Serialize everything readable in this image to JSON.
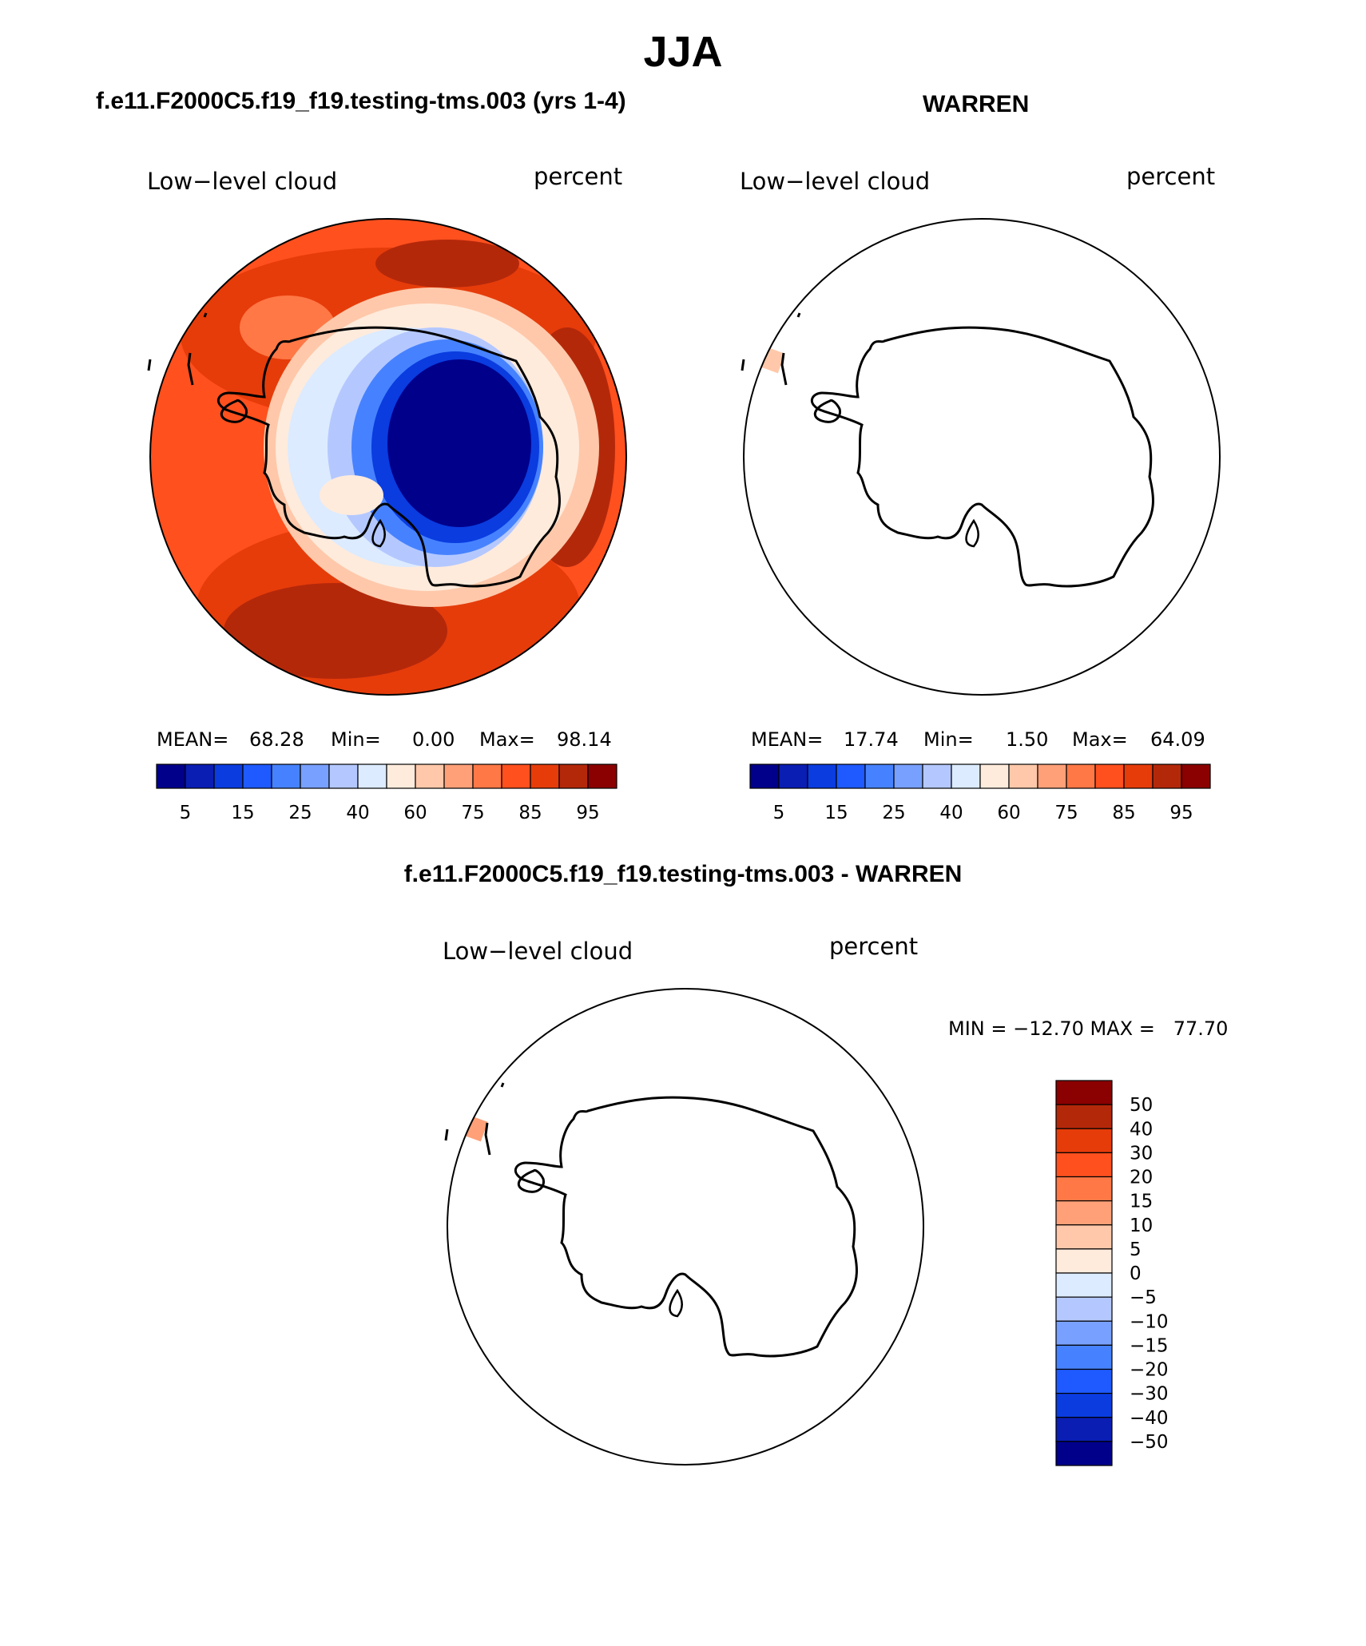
{
  "figure": {
    "season_title": "JJA",
    "panel1_header": "f.e11.F2000C5.f19_f19.testing-tms.003 (yrs 1-4)",
    "panel2_header": "WARREN",
    "diff_header": "f.e11.F2000C5.f19_f19.testing-tms.003 - WARREN"
  },
  "colors": {
    "abs_palette": [
      "#00008b",
      "#0a1eb4",
      "#0a3ce0",
      "#1e5aff",
      "#4682ff",
      "#78a0ff",
      "#b4c8ff",
      "#dcebff",
      "#ffebdc",
      "#ffc8aa",
      "#ffa078",
      "#ff7846",
      "#ff501e",
      "#e63c0a",
      "#b4280a",
      "#8b0000"
    ],
    "diff_palette": [
      "#00008b",
      "#0a1eb4",
      "#0a3ce0",
      "#1e5aff",
      "#4682ff",
      "#78a0ff",
      "#b4c8ff",
      "#dcebff",
      "#ffebdc",
      "#ffc8aa",
      "#ffa078",
      "#ff7846",
      "#ff501e",
      "#e63c0a",
      "#b4280a",
      "#8b0000"
    ],
    "map_ocean_model": "#ff501e",
    "map_dark_red": "#b4280a",
    "coastline": "#000000"
  },
  "chart_data": [
    {
      "type": "heatmap",
      "name": "model",
      "variable_label": "Low−level cloud",
      "units_label": "percent",
      "stats": {
        "mean_label": "MEAN=",
        "mean": "68.28",
        "min_label": "Min=",
        "min": "0.00",
        "max_label": "Max=",
        "max": "98.14"
      },
      "colorbar_ticks": [
        "5",
        "15",
        "25",
        "40",
        "60",
        "75",
        "85",
        "95"
      ],
      "levels": [
        5,
        10,
        15,
        20,
        25,
        30,
        40,
        50,
        60,
        70,
        75,
        80,
        85,
        90,
        95
      ]
    },
    {
      "type": "heatmap",
      "name": "obs",
      "variable_label": "Low−level cloud",
      "units_label": "percent",
      "stats": {
        "mean_label": "MEAN=",
        "mean": "17.74",
        "min_label": "Min=",
        "min": "1.50",
        "max_label": "Max=",
        "max": "64.09"
      },
      "colorbar_ticks": [
        "5",
        "15",
        "25",
        "40",
        "60",
        "75",
        "85",
        "95"
      ],
      "levels": [
        5,
        10,
        15,
        20,
        25,
        30,
        40,
        50,
        60,
        70,
        75,
        80,
        85,
        90,
        95
      ]
    },
    {
      "type": "heatmap",
      "name": "difference",
      "variable_label": "Low−level cloud",
      "units_label": "percent",
      "stats_text": "MIN = −12.70 MAX =   77.70",
      "colorbar_ticks": [
        "50",
        "40",
        "30",
        "20",
        "15",
        "10",
        "5",
        "0",
        "−5",
        "−10",
        "−15",
        "−20",
        "−30",
        "−40",
        "−50"
      ],
      "levels": [
        -50,
        -40,
        -30,
        -20,
        -15,
        -10,
        -5,
        0,
        5,
        10,
        15,
        20,
        30,
        40,
        50
      ]
    }
  ]
}
